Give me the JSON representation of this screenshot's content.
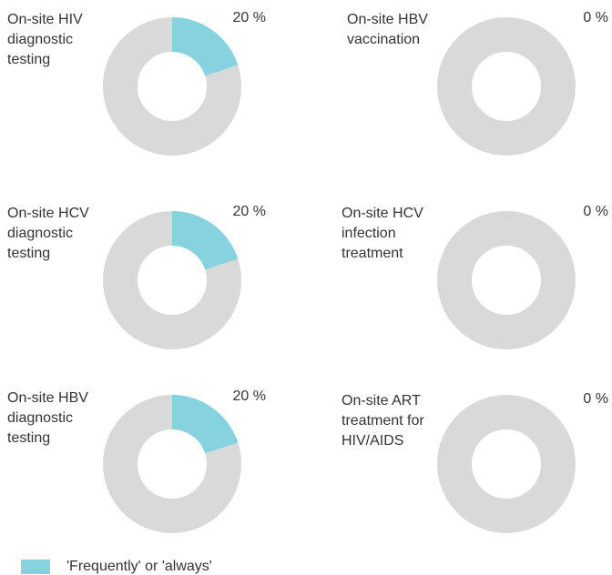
{
  "legend": {
    "name": "'Frequently' or 'always'",
    "color": "#86d3df"
  },
  "chart_data": [
    {
      "type": "donut",
      "title": [
        "On-site HIV",
        "diagnostic",
        "testing"
      ],
      "values": [
        20
      ],
      "value_labels": [
        "20 %"
      ]
    },
    {
      "type": "donut",
      "title": [
        "On-site HBV",
        "vaccination"
      ],
      "values": [
        0
      ],
      "value_labels": [
        "0 %"
      ]
    },
    {
      "type": "donut",
      "title": [
        "On-site HCV",
        "diagnostic",
        "testing"
      ],
      "values": [
        20
      ],
      "value_labels": [
        "20 %"
      ]
    },
    {
      "type": "donut",
      "title": [
        "On-site HCV",
        "infection",
        "treatment"
      ],
      "values": [
        0
      ],
      "value_labels": [
        "0 %"
      ]
    },
    {
      "type": "donut",
      "title": [
        "On-site HBV",
        "diagnostic",
        "testing"
      ],
      "values": [
        20
      ],
      "value_labels": [
        "20 %"
      ]
    },
    {
      "type": "donut",
      "title": [
        "On-site ART",
        "treatment for",
        "HIV/AIDS"
      ],
      "values": [
        0
      ],
      "value_labels": [
        "0 %"
      ]
    }
  ]
}
